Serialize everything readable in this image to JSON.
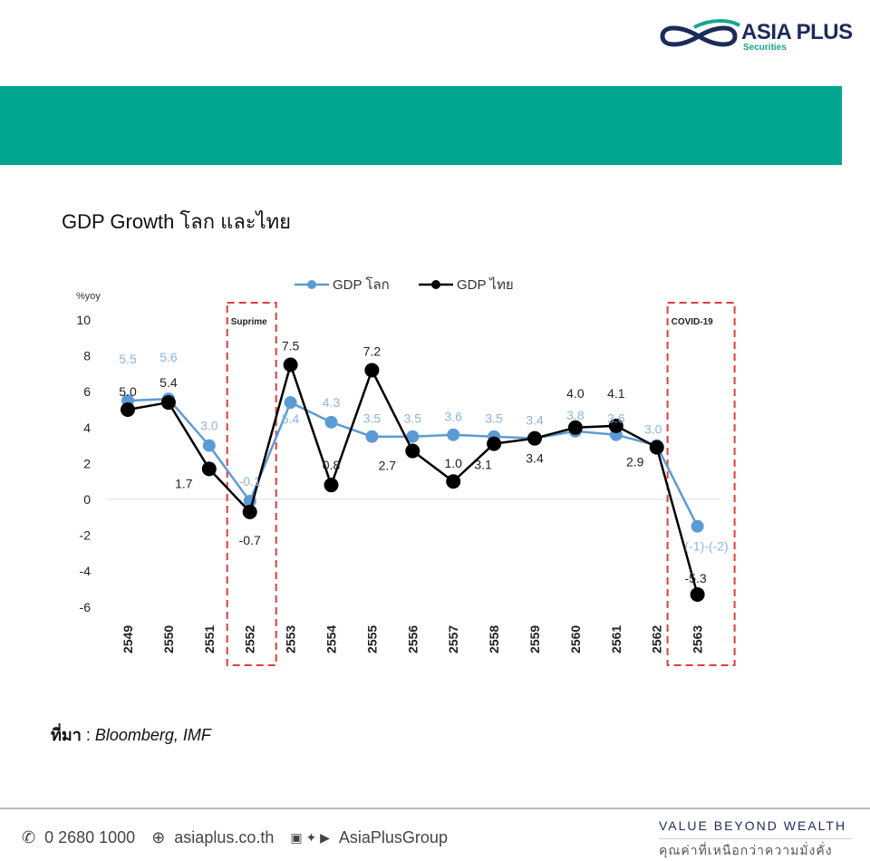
{
  "brand": {
    "name": "ASIA PLUS",
    "sub": "Securities"
  },
  "title": "GDP Growth โลก และไทย",
  "source": {
    "label": "ที่มา",
    "text": "Bloomberg, IMF"
  },
  "footer": {
    "phone": "0 2680 1000",
    "website": "asiaplus.co.th",
    "social": "AsiaPlusGroup",
    "tagline": "VALUE BEYOND WEALTH",
    "tagline_th": "คุณค่าที่เหนือกว่าความมั่งคั่ง"
  },
  "colors": {
    "band": "#00a78e",
    "world": "#5b9bd5",
    "thai": "#000000",
    "highlight": "#e03c3c"
  },
  "chart_data": {
    "type": "line",
    "ylabel": "%yoy",
    "ylim": [
      -6,
      10
    ],
    "yticks": [
      -6,
      -4,
      -2,
      0,
      2,
      4,
      6,
      8,
      10
    ],
    "categories": [
      "2549",
      "2550",
      "2551",
      "2552",
      "2553",
      "2554",
      "2555",
      "2556",
      "2557",
      "2558",
      "2559",
      "2560",
      "2561",
      "2562",
      "2563"
    ],
    "legend": "top",
    "series": [
      {
        "name": "GDP โลก",
        "color": "#5b9bd5",
        "values": [
          5.5,
          5.6,
          3.0,
          -0.1,
          5.4,
          4.3,
          3.5,
          3.5,
          3.6,
          3.5,
          3.4,
          3.8,
          3.6,
          3.0,
          -1.5
        ],
        "labels": [
          "5.5",
          "5.6",
          "3.0",
          "-0.1",
          "5.4",
          "4.3",
          "3.5",
          "3.5",
          "3.6",
          "3.5",
          "3.4",
          "3.8",
          "3.6",
          "3.0",
          "(-1)-(-2)"
        ]
      },
      {
        "name": "GDP ไทย",
        "color": "#000000",
        "values": [
          5.0,
          5.4,
          1.7,
          -0.7,
          7.5,
          0.8,
          7.2,
          2.7,
          1.0,
          3.1,
          3.4,
          4.0,
          4.1,
          2.9,
          -5.3
        ],
        "labels": [
          "5.0",
          "5.4",
          "1.7",
          "-0.7",
          "7.5",
          "0.8",
          "7.2",
          "2.7",
          "1.0",
          "3.1",
          "3.4",
          "4.0",
          "4.1",
          "2.9",
          "-5.3"
        ]
      }
    ],
    "annotations": [
      {
        "text": "Suprime",
        "category": "2552"
      },
      {
        "text": "COVID-19",
        "category": "2563"
      }
    ]
  }
}
